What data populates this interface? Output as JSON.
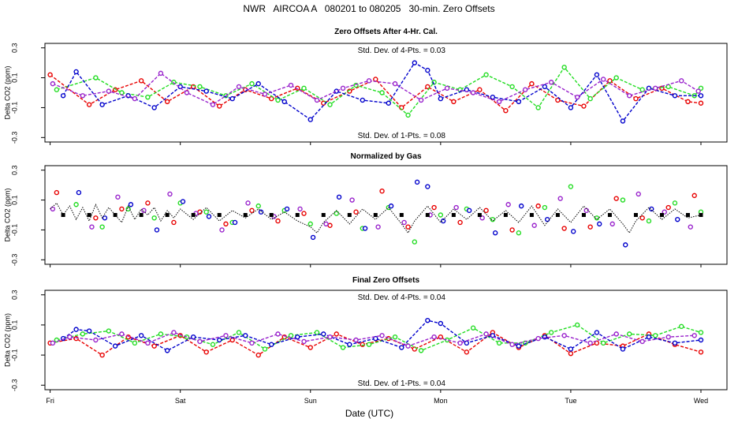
{
  "title": "NWR   AIRCOA A   080201 to 080205   30-min. Zero Offsets",
  "x_axis": {
    "label": "Date (UTC)",
    "ticks": [
      {
        "pos": 0,
        "label": "Fri"
      },
      {
        "pos": 1,
        "label": "Sat"
      },
      {
        "pos": 2,
        "label": "Sun"
      },
      {
        "pos": 3,
        "label": "Mon"
      },
      {
        "pos": 4,
        "label": "Tue"
      },
      {
        "pos": 5,
        "label": "Wed"
      }
    ]
  },
  "colors": {
    "red": "#e80000",
    "green": "#22dd22",
    "blue": "#0000cc",
    "purple": "#9922cc",
    "black": "#000000"
  },
  "chart_data": [
    {
      "type": "line",
      "title": "Zero Offsets After 4-Hr. Cal.",
      "ylabel": "Delta CO2 (ppm)",
      "ylim": [
        -0.33,
        0.33
      ],
      "yticks": [
        -0.3,
        -0.1,
        0.1,
        0.3
      ],
      "ytick_labels": [
        "-0.3",
        "-0.1",
        "0.1",
        "0.3"
      ],
      "xlim": [
        -0.04,
        5.2
      ],
      "annotations": [
        {
          "text": "Std. Dev. of 4-Pts. =  0.03",
          "x": 2.7,
          "y": 0.28
        },
        {
          "text": "Std. Dev. of 1-Pts. =  0.08",
          "x": 2.7,
          "y": -0.29
        }
      ],
      "series": [
        {
          "name": "red",
          "color": "#e80000",
          "x": [
            0,
            0.3,
            0.5,
            0.7,
            0.9,
            1.1,
            1.3,
            1.5,
            1.7,
            1.9,
            2.1,
            2.3,
            2.5,
            2.7,
            2.9,
            3.1,
            3.3,
            3.5,
            3.7,
            3.9,
            4.1,
            4.3,
            4.5,
            4.7,
            4.9,
            5.0
          ],
          "values": [
            0.12,
            -0.08,
            0.02,
            0.08,
            -0.06,
            0.04,
            -0.09,
            0.02,
            -0.04,
            0.03,
            -0.07,
            0.01,
            0.09,
            -0.1,
            0.04,
            -0.06,
            0.02,
            -0.12,
            0.06,
            -0.05,
            -0.09,
            0.08,
            -0.04,
            0.03,
            -0.06,
            -0.07
          ]
        },
        {
          "name": "green",
          "color": "#22dd22",
          "x": [
            0.05,
            0.35,
            0.55,
            0.75,
            0.95,
            1.15,
            1.35,
            1.55,
            1.75,
            1.95,
            2.15,
            2.35,
            2.55,
            2.75,
            2.95,
            3.15,
            3.35,
            3.55,
            3.75,
            3.95,
            4.15,
            4.35,
            4.55,
            4.75,
            4.95,
            5.0
          ],
          "values": [
            0.02,
            0.1,
            0.0,
            -0.03,
            0.07,
            0.04,
            -0.02,
            0.06,
            -0.05,
            0.03,
            -0.08,
            0.05,
            0.0,
            -0.15,
            0.07,
            0.02,
            0.12,
            0.04,
            -0.1,
            0.17,
            -0.04,
            0.1,
            0.02,
            0.04,
            -0.02,
            0.03
          ]
        },
        {
          "name": "blue",
          "color": "#0000cc",
          "x": [
            0.1,
            0.2,
            0.4,
            0.6,
            0.8,
            1.0,
            1.2,
            1.4,
            1.6,
            1.8,
            2.0,
            2.2,
            2.4,
            2.6,
            2.8,
            2.9,
            3.0,
            3.2,
            3.4,
            3.6,
            3.8,
            4.0,
            4.2,
            4.4,
            4.6,
            4.8,
            5.0
          ],
          "values": [
            -0.02,
            0.14,
            -0.08,
            -0.02,
            -0.1,
            0.04,
            0.01,
            -0.04,
            0.06,
            -0.06,
            -0.18,
            0.01,
            -0.05,
            -0.07,
            0.2,
            0.15,
            -0.04,
            0.02,
            -0.03,
            -0.06,
            0.04,
            -0.1,
            0.12,
            -0.19,
            0.03,
            -0.02,
            -0.02
          ]
        },
        {
          "name": "purple",
          "color": "#9922cc",
          "x": [
            0.02,
            0.25,
            0.45,
            0.65,
            0.85,
            1.05,
            1.25,
            1.45,
            1.65,
            1.85,
            2.05,
            2.25,
            2.45,
            2.65,
            2.85,
            3.05,
            3.25,
            3.45,
            3.65,
            3.85,
            4.05,
            4.25,
            4.45,
            4.65,
            4.85,
            4.98
          ],
          "values": [
            0.06,
            -0.02,
            0.01,
            -0.04,
            0.13,
            0.0,
            -0.08,
            0.04,
            -0.01,
            0.05,
            -0.05,
            0.03,
            0.08,
            0.06,
            -0.05,
            0.03,
            0.0,
            -0.06,
            0.02,
            0.07,
            -0.03,
            0.09,
            -0.02,
            0.03,
            0.08,
            0.01
          ]
        }
      ]
    },
    {
      "type": "scatter",
      "title": "Normalized by Gas",
      "ylabel": "Delta CO2 (ppm)",
      "ylim": [
        -0.33,
        0.33
      ],
      "yticks": [
        -0.3,
        -0.1,
        0.1,
        0.3
      ],
      "ytick_labels": [
        "-0.3",
        "-0.1",
        "0.1",
        "0.3"
      ],
      "xlim": [
        -0.04,
        5.2
      ],
      "annotations": [],
      "series": [
        {
          "name": "red",
          "color": "#e80000",
          "x": [
            0.05,
            0.35,
            0.55,
            0.75,
            0.95,
            1.15,
            1.35,
            1.55,
            1.75,
            1.95,
            2.15,
            2.35,
            2.55,
            2.75,
            2.95,
            3.15,
            3.35,
            3.55,
            3.75,
            3.95,
            4.15,
            4.35,
            4.55,
            4.75,
            4.95
          ],
          "values": [
            0.15,
            -0.02,
            0.04,
            0.08,
            -0.05,
            0.02,
            -0.06,
            0.03,
            -0.04,
            0.01,
            -0.07,
            0.02,
            0.16,
            -0.08,
            0.05,
            -0.05,
            0.03,
            -0.1,
            0.06,
            -0.09,
            -0.08,
            0.11,
            -0.02,
            0.05,
            0.13
          ]
        },
        {
          "name": "green",
          "color": "#22dd22",
          "x": [
            0.2,
            0.4,
            0.6,
            0.8,
            1.0,
            1.2,
            1.4,
            1.6,
            1.8,
            2.0,
            2.2,
            2.4,
            2.6,
            2.8,
            3.0,
            3.2,
            3.4,
            3.6,
            3.8,
            4.0,
            4.2,
            4.4,
            4.6,
            4.8,
            5.0
          ],
          "values": [
            0.07,
            -0.08,
            0.04,
            -0.02,
            0.08,
            0.02,
            -0.05,
            0.06,
            0.03,
            -0.06,
            0.01,
            -0.09,
            0.05,
            -0.18,
            0.0,
            0.04,
            -0.03,
            -0.12,
            0.05,
            0.19,
            -0.02,
            0.1,
            -0.04,
            0.08,
            0.02
          ]
        },
        {
          "name": "blue",
          "color": "#0000cc",
          "x": [
            0.22,
            0.42,
            0.62,
            0.82,
            1.02,
            1.22,
            1.42,
            1.62,
            1.82,
            2.02,
            2.22,
            2.42,
            2.62,
            2.82,
            2.9,
            3.02,
            3.22,
            3.42,
            3.62,
            3.82,
            4.02,
            4.22,
            4.42,
            4.62,
            4.82
          ],
          "values": [
            0.15,
            -0.02,
            0.07,
            -0.1,
            0.09,
            -0.01,
            -0.05,
            0.02,
            0.04,
            -0.15,
            0.12,
            -0.09,
            0.06,
            0.22,
            0.19,
            -0.04,
            0.03,
            -0.12,
            0.06,
            -0.03,
            -0.11,
            -0.06,
            -0.2,
            0.04,
            -0.03
          ]
        },
        {
          "name": "purple",
          "color": "#9922cc",
          "x": [
            0.02,
            0.32,
            0.52,
            0.72,
            0.92,
            1.12,
            1.32,
            1.52,
            1.72,
            1.92,
            2.12,
            2.32,
            2.52,
            2.72,
            2.92,
            3.12,
            3.32,
            3.52,
            3.72,
            3.92,
            4.12,
            4.32,
            4.52,
            4.72,
            4.92
          ],
          "values": [
            0.04,
            -0.08,
            0.12,
            0.03,
            0.14,
            0.01,
            -0.1,
            0.08,
            -0.01,
            0.04,
            -0.06,
            0.1,
            -0.08,
            -0.05,
            0.0,
            0.05,
            -0.02,
            0.07,
            -0.07,
            0.11,
            0.03,
            -0.06,
            0.14,
            0.02,
            -0.08
          ]
        },
        {
          "name": "black",
          "color": "#000000",
          "x": [
            0.1,
            0.3,
            0.5,
            0.7,
            0.9,
            1.1,
            1.3,
            1.5,
            1.7,
            1.9,
            2.1,
            2.3,
            2.5,
            2.7,
            2.9,
            3.1,
            3.3,
            3.5,
            3.7,
            3.9,
            4.1,
            4.3,
            4.5,
            4.7,
            4.9,
            5.0
          ],
          "values": [
            0.0,
            0.0,
            0.0,
            0.0,
            0.0,
            0.0,
            0.0,
            0.0,
            0.0,
            0.0,
            0.0,
            0.0,
            0.0,
            0.0,
            0.0,
            0.0,
            0.0,
            0.0,
            0.0,
            0.0,
            0.0,
            0.0,
            0.0,
            0.0,
            0.0,
            0.0
          ]
        },
        {
          "name": "dotted",
          "color": "#000000",
          "x": [
            0.0,
            0.05,
            0.1,
            0.15,
            0.2,
            0.25,
            0.3,
            0.35,
            0.4,
            0.45,
            0.5,
            0.55,
            0.6,
            0.65,
            0.7,
            0.75,
            0.8,
            0.85,
            0.9,
            0.95,
            1.0,
            1.1,
            1.2,
            1.3,
            1.4,
            1.5,
            1.6,
            1.7,
            1.8,
            1.9,
            2.0,
            2.05,
            2.1,
            2.2,
            2.3,
            2.4,
            2.5,
            2.6,
            2.7,
            2.75,
            2.8,
            2.9,
            3.0,
            3.1,
            3.2,
            3.3,
            3.4,
            3.5,
            3.6,
            3.7,
            3.8,
            3.9,
            4.0,
            4.1,
            4.2,
            4.3,
            4.4,
            4.45,
            4.5,
            4.6,
            4.7,
            4.8,
            4.9,
            5.0
          ],
          "values": [
            0.04,
            0.08,
            0.0,
            0.06,
            -0.03,
            0.05,
            -0.04,
            0.07,
            -0.02,
            0.05,
            0.0,
            -0.05,
            0.06,
            -0.03,
            0.04,
            0.0,
            0.05,
            -0.04,
            0.03,
            -0.02,
            0.04,
            -0.03,
            0.05,
            -0.04,
            0.03,
            -0.02,
            0.04,
            -0.03,
            0.02,
            -0.04,
            -0.08,
            -0.12,
            -0.05,
            0.03,
            -0.06,
            0.04,
            -0.03,
            0.05,
            -0.06,
            -0.12,
            -0.04,
            0.06,
            -0.05,
            0.04,
            -0.03,
            0.05,
            -0.04,
            0.03,
            -0.05,
            0.06,
            -0.07,
            0.04,
            -0.05,
            0.06,
            -0.03,
            0.04,
            -0.06,
            -0.12,
            -0.04,
            0.05,
            -0.03,
            0.04,
            -0.02,
            0.0
          ]
        }
      ]
    },
    {
      "type": "line",
      "title": "Final Zero Offsets",
      "ylabel": "Delta CO2 (ppm)",
      "ylim": [
        -0.33,
        0.33
      ],
      "yticks": [
        -0.3,
        -0.1,
        0.1,
        0.3
      ],
      "ytick_labels": [
        "-0.3",
        "-0.1",
        "0.1",
        "0.3"
      ],
      "xlim": [
        -0.04,
        5.2
      ],
      "annotations": [
        {
          "text": "Std. Dev. of 4-Pts. =  0.04",
          "x": 2.7,
          "y": 0.28
        },
        {
          "text": "Std. Dev. of 1-Pts. =  0.04",
          "x": 2.7,
          "y": -0.29
        }
      ],
      "series": [
        {
          "name": "red",
          "color": "#e80000",
          "x": [
            0,
            0.2,
            0.4,
            0.6,
            0.8,
            1.0,
            1.2,
            1.4,
            1.6,
            1.8,
            2.0,
            2.2,
            2.4,
            2.6,
            2.8,
            3.0,
            3.2,
            3.4,
            3.6,
            3.8,
            4.0,
            4.2,
            4.4,
            4.6,
            4.8,
            5.0
          ],
          "values": [
            -0.02,
            0.01,
            -0.1,
            0.02,
            -0.04,
            0.03,
            -0.08,
            0.0,
            -0.1,
            0.02,
            -0.05,
            0.04,
            -0.03,
            0.01,
            -0.06,
            0.02,
            -0.08,
            0.05,
            -0.05,
            0.03,
            -0.09,
            -0.02,
            -0.04,
            0.04,
            -0.03,
            -0.08
          ]
        },
        {
          "name": "green",
          "color": "#22dd22",
          "x": [
            0.05,
            0.25,
            0.45,
            0.65,
            0.85,
            1.05,
            1.25,
            1.45,
            1.65,
            1.85,
            2.05,
            2.25,
            2.45,
            2.65,
            2.85,
            3.05,
            3.25,
            3.45,
            3.65,
            3.85,
            4.05,
            4.25,
            4.45,
            4.65,
            4.85,
            5.0
          ],
          "values": [
            0.0,
            0.04,
            0.06,
            -0.02,
            0.04,
            0.02,
            -0.03,
            0.05,
            -0.06,
            0.03,
            0.05,
            -0.05,
            -0.03,
            0.02,
            -0.07,
            0.0,
            0.08,
            -0.02,
            -0.02,
            0.05,
            0.1,
            -0.02,
            0.04,
            0.03,
            0.09,
            0.05
          ]
        },
        {
          "name": "blue",
          "color": "#0000cc",
          "x": [
            0.1,
            0.2,
            0.3,
            0.5,
            0.7,
            0.9,
            1.1,
            1.3,
            1.5,
            1.7,
            1.9,
            2.1,
            2.3,
            2.5,
            2.7,
            2.9,
            3.0,
            3.2,
            3.4,
            3.6,
            3.8,
            4.0,
            4.2,
            4.4,
            4.6,
            4.8,
            5.0
          ],
          "values": [
            0.01,
            0.07,
            0.06,
            -0.04,
            0.03,
            -0.07,
            0.02,
            0.0,
            0.03,
            -0.03,
            0.02,
            0.04,
            -0.03,
            0.01,
            -0.05,
            0.13,
            0.11,
            -0.02,
            0.03,
            -0.04,
            0.02,
            -0.06,
            0.05,
            -0.06,
            0.02,
            -0.02,
            0.0
          ]
        },
        {
          "name": "purple",
          "color": "#9922cc",
          "x": [
            0.02,
            0.15,
            0.35,
            0.55,
            0.75,
            0.95,
            1.15,
            1.35,
            1.55,
            1.75,
            1.95,
            2.15,
            2.35,
            2.55,
            2.75,
            2.95,
            3.15,
            3.35,
            3.55,
            3.75,
            3.95,
            4.15,
            4.35,
            4.55,
            4.75,
            4.95
          ],
          "values": [
            -0.02,
            0.02,
            0.0,
            0.04,
            -0.02,
            0.05,
            -0.01,
            0.03,
            -0.02,
            0.04,
            -0.01,
            0.02,
            0.0,
            0.03,
            -0.04,
            0.02,
            -0.02,
            0.04,
            -0.03,
            0.01,
            0.03,
            -0.02,
            0.04,
            -0.01,
            0.02,
            0.03
          ]
        }
      ]
    }
  ]
}
